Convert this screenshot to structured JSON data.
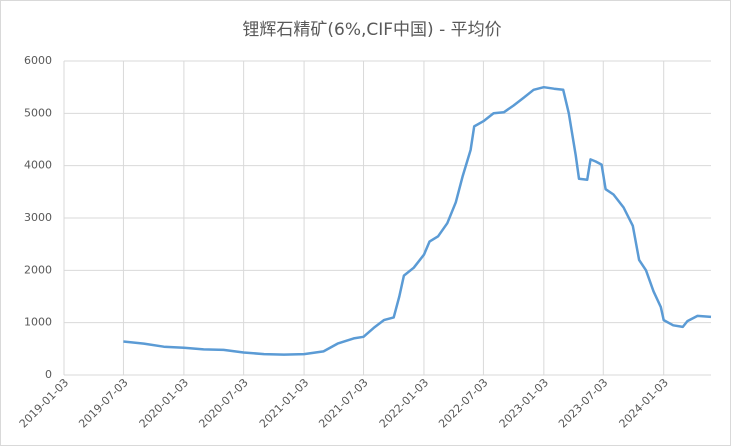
{
  "chart_data": {
    "type": "line",
    "title": "锂辉石精矿(6%,CIF中国) - 平均价",
    "x": [
      "2019-07-03",
      "2019-09-03",
      "2019-11-03",
      "2020-01-03",
      "2020-03-03",
      "2020-05-03",
      "2020-07-03",
      "2020-09-03",
      "2020-11-03",
      "2021-01-03",
      "2021-03-03",
      "2021-04-15",
      "2021-06-03",
      "2021-07-03",
      "2021-08-03",
      "2021-09-03",
      "2021-10-03",
      "2021-10-20",
      "2021-11-03",
      "2021-12-03",
      "2022-01-03",
      "2022-01-20",
      "2022-02-15",
      "2022-03-15",
      "2022-04-10",
      "2022-05-01",
      "2022-05-25",
      "2022-06-05",
      "2022-07-03",
      "2022-08-03",
      "2022-09-03",
      "2022-10-03",
      "2022-11-03",
      "2022-12-03",
      "2023-01-03",
      "2023-02-03",
      "2023-03-03",
      "2023-03-20",
      "2023-04-10",
      "2023-04-20",
      "2023-05-15",
      "2023-05-25",
      "2023-06-10",
      "2023-06-28",
      "2023-07-10",
      "2023-08-03",
      "2023-09-03",
      "2023-10-01",
      "2023-10-20",
      "2023-11-10",
      "2023-12-03",
      "2023-12-25",
      "2024-01-03",
      "2024-02-01",
      "2024-03-01",
      "2024-03-15",
      "2024-04-15",
      "2024-05-26"
    ],
    "series": [
      {
        "name": "平均价",
        "color": "#5b9bd5",
        "values": [
          640,
          600,
          540,
          520,
          490,
          480,
          430,
          400,
          390,
          400,
          450,
          600,
          700,
          730,
          900,
          1050,
          1100,
          1500,
          1900,
          2050,
          2300,
          2550,
          2650,
          2900,
          3300,
          3800,
          4300,
          4750,
          4850,
          5000,
          5020,
          5150,
          5300,
          5450,
          5500,
          5470,
          5450,
          5000,
          4200,
          3750,
          3730,
          4120,
          4080,
          4020,
          3550,
          3450,
          3200,
          2850,
          2200,
          2000,
          1600,
          1300,
          1050,
          950,
          920,
          1030,
          1130,
          1110
        ]
      }
    ],
    "xlim": [
      "2019-01-03",
      "2024-05-26"
    ],
    "xticks": [
      "2019-01-03",
      "2019-07-03",
      "2020-01-03",
      "2020-07-03",
      "2021-01-03",
      "2021-07-03",
      "2022-01-03",
      "2022-07-03",
      "2023-01-03",
      "2023-07-03",
      "2024-01-03"
    ],
    "ylim": [
      0,
      6000
    ],
    "yticks": [
      0,
      1000,
      2000,
      3000,
      4000,
      5000,
      6000
    ],
    "grid": true
  }
}
